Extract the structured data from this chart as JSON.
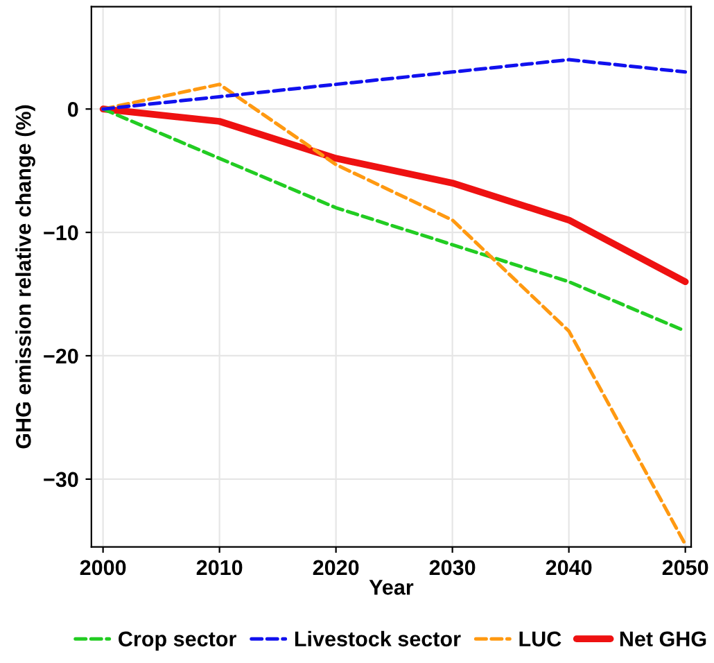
{
  "chart_data": {
    "type": "line",
    "xlabel": "Year",
    "ylabel": "GHG emission relative change (%)",
    "x": [
      2000,
      2010,
      2020,
      2030,
      2040,
      2050
    ],
    "series": [
      {
        "name": "Crop sector",
        "color": "#22cc22",
        "line_style": "dashed",
        "values": [
          0,
          -4,
          -8,
          -11,
          -14,
          -18
        ]
      },
      {
        "name": "Livestock sector",
        "color": "#1111ee",
        "line_style": "dashed",
        "values": [
          0,
          1,
          2,
          3,
          4,
          3
        ]
      },
      {
        "name": "LUC",
        "color": "#ff9911",
        "line_style": "dashed",
        "values": [
          0,
          2,
          -4.5,
          -9,
          -18,
          -35.3
        ]
      },
      {
        "name": "Net GHG",
        "color": "#ee1111",
        "line_style": "solid",
        "values": [
          0,
          -1,
          -4,
          -6,
          -9,
          -14
        ]
      }
    ],
    "xlim": [
      1999,
      2050.5
    ],
    "ylim": [
      -35.5,
      8.3
    ],
    "xticks": [
      2000,
      2010,
      2020,
      2030,
      2040,
      2050
    ],
    "yticks": [
      {
        "value": -30,
        "label": "−30"
      },
      {
        "value": -20,
        "label": "−20"
      },
      {
        "value": -10,
        "label": "−10"
      },
      0
    ],
    "grid": true,
    "legend": "bottom"
  }
}
